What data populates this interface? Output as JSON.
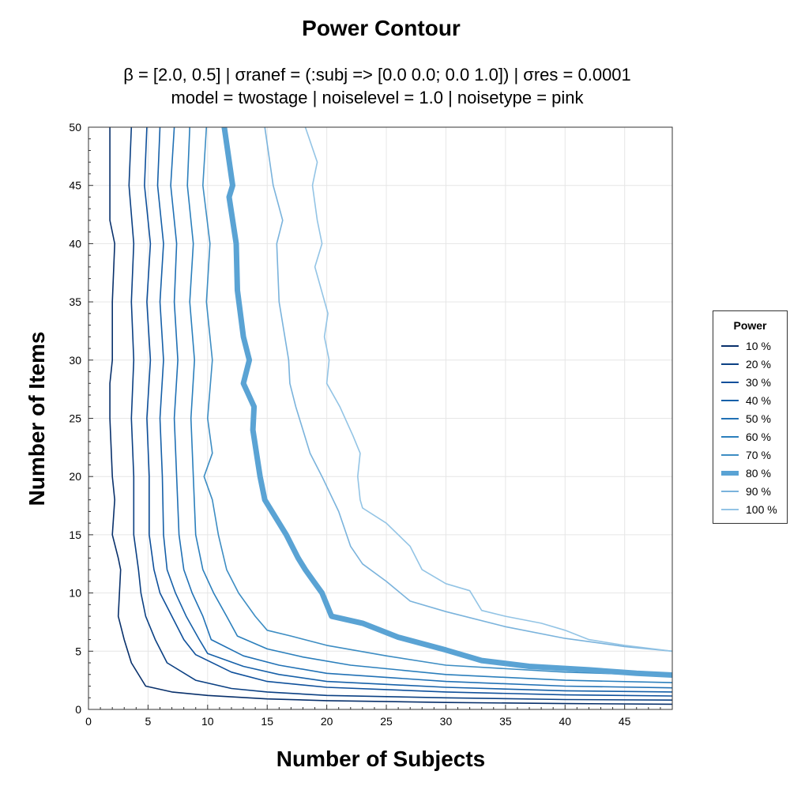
{
  "chart_data": {
    "type": "line",
    "title": "Power Contour",
    "subtitle_line1": "β = [2.0, 0.5]   |   σranef = (:subj => [0.0 0.0; 0.0 1.0])   |   σres = 0.0001",
    "subtitle_line2": "model = twostage   |   noiselevel = 1.0   |   noisetype = pink",
    "xlabel": "Number of Subjects",
    "ylabel": "Number of Items",
    "xlim": [
      0,
      49
    ],
    "ylim": [
      0,
      50
    ],
    "xticks": [
      0,
      5,
      10,
      15,
      20,
      25,
      30,
      35,
      40,
      45
    ],
    "yticks": [
      0,
      5,
      10,
      15,
      20,
      25,
      30,
      35,
      40,
      45,
      50
    ],
    "grid": true,
    "legend_title": "Power",
    "legend_position": "right",
    "highlight_series": "80 %",
    "series": [
      {
        "name": "10 %",
        "color": "#08306b",
        "points": [
          [
            1.8,
            50
          ],
          [
            1.8,
            45
          ],
          [
            1.8,
            42
          ],
          [
            2.2,
            40
          ],
          [
            2.0,
            35
          ],
          [
            2.0,
            30
          ],
          [
            1.8,
            28
          ],
          [
            1.8,
            25
          ],
          [
            2.0,
            20
          ],
          [
            2.2,
            18
          ],
          [
            2.0,
            15
          ],
          [
            2.5,
            13
          ],
          [
            2.7,
            12
          ],
          [
            2.6,
            10
          ],
          [
            2.5,
            8
          ],
          [
            3.0,
            6
          ],
          [
            3.6,
            4
          ],
          [
            4.8,
            2
          ],
          [
            7,
            1.5
          ],
          [
            10,
            1.2
          ],
          [
            15,
            0.9
          ],
          [
            20,
            0.75
          ],
          [
            30,
            0.6
          ],
          [
            40,
            0.5
          ],
          [
            49,
            0.45
          ]
        ]
      },
      {
        "name": "20 %",
        "color": "#0b4083",
        "points": [
          [
            3.6,
            50
          ],
          [
            3.4,
            45
          ],
          [
            3.8,
            40
          ],
          [
            3.6,
            35
          ],
          [
            3.8,
            30
          ],
          [
            3.6,
            25
          ],
          [
            3.8,
            20
          ],
          [
            3.8,
            15
          ],
          [
            4.2,
            12
          ],
          [
            4.4,
            10
          ],
          [
            4.8,
            8
          ],
          [
            5.6,
            6
          ],
          [
            6.6,
            4
          ],
          [
            9,
            2.5
          ],
          [
            12,
            1.8
          ],
          [
            15,
            1.5
          ],
          [
            20,
            1.2
          ],
          [
            30,
            1.0
          ],
          [
            40,
            0.85
          ],
          [
            49,
            0.8
          ]
        ]
      },
      {
        "name": "30 %",
        "color": "#0f509b",
        "points": [
          [
            4.9,
            50
          ],
          [
            4.7,
            45
          ],
          [
            5.2,
            40
          ],
          [
            4.9,
            35
          ],
          [
            5.2,
            30
          ],
          [
            4.9,
            25
          ],
          [
            5.1,
            20
          ],
          [
            5.1,
            15
          ],
          [
            5.5,
            12
          ],
          [
            6.0,
            10
          ],
          [
            7.0,
            8
          ],
          [
            8.0,
            6
          ],
          [
            9,
            4.7
          ],
          [
            12,
            3.2
          ],
          [
            15,
            2.4
          ],
          [
            20,
            1.9
          ],
          [
            30,
            1.5
          ],
          [
            40,
            1.25
          ],
          [
            49,
            1.15
          ]
        ]
      },
      {
        "name": "40 %",
        "color": "#1660a8",
        "points": [
          [
            6.0,
            50
          ],
          [
            5.8,
            45
          ],
          [
            6.3,
            40
          ],
          [
            6.0,
            35
          ],
          [
            6.3,
            30
          ],
          [
            6.0,
            25
          ],
          [
            6.2,
            20
          ],
          [
            6.3,
            15
          ],
          [
            6.6,
            12
          ],
          [
            7.3,
            10
          ],
          [
            8.2,
            8
          ],
          [
            9.3,
            6
          ],
          [
            10,
            4.8
          ],
          [
            13,
            3.7
          ],
          [
            16,
            3.0
          ],
          [
            20,
            2.4
          ],
          [
            30,
            1.9
          ],
          [
            40,
            1.6
          ],
          [
            49,
            1.5
          ]
        ]
      },
      {
        "name": "50 %",
        "color": "#2171b5",
        "points": [
          [
            7.2,
            50
          ],
          [
            6.9,
            45
          ],
          [
            7.4,
            40
          ],
          [
            7.2,
            35
          ],
          [
            7.5,
            30
          ],
          [
            7.2,
            25
          ],
          [
            7.4,
            20
          ],
          [
            7.6,
            15
          ],
          [
            8.0,
            12
          ],
          [
            8.7,
            10
          ],
          [
            9.6,
            8
          ],
          [
            10.3,
            6
          ],
          [
            13,
            4.6
          ],
          [
            16,
            3.8
          ],
          [
            20,
            3.1
          ],
          [
            30,
            2.4
          ],
          [
            40,
            2.0
          ],
          [
            49,
            1.85
          ]
        ]
      },
      {
        "name": "60 %",
        "color": "#2b7fbc",
        "points": [
          [
            8.5,
            50
          ],
          [
            8.3,
            45
          ],
          [
            8.8,
            40
          ],
          [
            8.5,
            35
          ],
          [
            8.9,
            30
          ],
          [
            8.6,
            25
          ],
          [
            8.8,
            20
          ],
          [
            9.0,
            15
          ],
          [
            9.6,
            12
          ],
          [
            10.5,
            10
          ],
          [
            11.6,
            8
          ],
          [
            12.5,
            6.3
          ],
          [
            15,
            5.2
          ],
          [
            18,
            4.5
          ],
          [
            22,
            3.8
          ],
          [
            30,
            3.0
          ],
          [
            40,
            2.5
          ],
          [
            49,
            2.3
          ]
        ]
      },
      {
        "name": "70 %",
        "color": "#3d8dc3",
        "points": [
          [
            9.9,
            50
          ],
          [
            9.6,
            45
          ],
          [
            10.2,
            40
          ],
          [
            9.9,
            35
          ],
          [
            10.4,
            30
          ],
          [
            10.0,
            25
          ],
          [
            10.4,
            22
          ],
          [
            9.7,
            20
          ],
          [
            10.4,
            18
          ],
          [
            10.9,
            15
          ],
          [
            11.6,
            12
          ],
          [
            12.6,
            10
          ],
          [
            14,
            8
          ],
          [
            15,
            6.8
          ],
          [
            17,
            6.3
          ],
          [
            20,
            5.5
          ],
          [
            25,
            4.6
          ],
          [
            30,
            3.8
          ],
          [
            40,
            3.2
          ],
          [
            49,
            2.9
          ]
        ]
      },
      {
        "name": "80 %",
        "color": "#5aa3d4",
        "points": [
          [
            11.4,
            50
          ],
          [
            12.1,
            45
          ],
          [
            11.8,
            44
          ],
          [
            12.4,
            40
          ],
          [
            12.5,
            36
          ],
          [
            13.0,
            32
          ],
          [
            13.5,
            30
          ],
          [
            13.0,
            28
          ],
          [
            13.9,
            26
          ],
          [
            13.8,
            24
          ],
          [
            14.4,
            20
          ],
          [
            14.8,
            18
          ],
          [
            16.6,
            15
          ],
          [
            17.6,
            13
          ],
          [
            18.2,
            12
          ],
          [
            18.9,
            11
          ],
          [
            19.6,
            10
          ],
          [
            20.4,
            8
          ],
          [
            23,
            7.4
          ],
          [
            26,
            6.2
          ],
          [
            30,
            5.1
          ],
          [
            33,
            4.2
          ],
          [
            37,
            3.7
          ],
          [
            42,
            3.4
          ],
          [
            46,
            3.1
          ],
          [
            49,
            2.95
          ]
        ]
      },
      {
        "name": "90 %",
        "color": "#7ab3dc",
        "points": [
          [
            14.8,
            50
          ],
          [
            15.5,
            45
          ],
          [
            16.3,
            42
          ],
          [
            15.8,
            40
          ],
          [
            16.0,
            35
          ],
          [
            16.8,
            30
          ],
          [
            16.9,
            28
          ],
          [
            17.4,
            26
          ],
          [
            18.6,
            22
          ],
          [
            19.6,
            20
          ],
          [
            21,
            17
          ],
          [
            22,
            14
          ],
          [
            23,
            12.5
          ],
          [
            25,
            11
          ],
          [
            27,
            9.3
          ],
          [
            30,
            8.4
          ],
          [
            35,
            7.1
          ],
          [
            40,
            6.1
          ],
          [
            45,
            5.4
          ],
          [
            49,
            5.0
          ]
        ]
      },
      {
        "name": "100 %",
        "color": "#93c4e5",
        "points": [
          [
            18.2,
            50
          ],
          [
            19.2,
            47
          ],
          [
            18.8,
            45
          ],
          [
            19.2,
            42
          ],
          [
            19.6,
            40
          ],
          [
            19.0,
            38
          ],
          [
            20.1,
            34
          ],
          [
            19.8,
            32
          ],
          [
            20.2,
            30
          ],
          [
            20.0,
            28
          ],
          [
            21.1,
            26
          ],
          [
            22.2,
            23.5
          ],
          [
            22.8,
            22
          ],
          [
            22.6,
            20
          ],
          [
            22.8,
            18
          ],
          [
            23,
            17.3
          ],
          [
            25,
            16
          ],
          [
            27,
            14
          ],
          [
            28,
            12
          ],
          [
            30,
            10.8
          ],
          [
            32,
            10.2
          ],
          [
            33,
            8.5
          ],
          [
            35,
            8.0
          ],
          [
            38,
            7.4
          ],
          [
            40,
            6.8
          ],
          [
            42,
            6.0
          ],
          [
            45,
            5.5
          ],
          [
            49,
            5.0
          ]
        ]
      }
    ]
  }
}
